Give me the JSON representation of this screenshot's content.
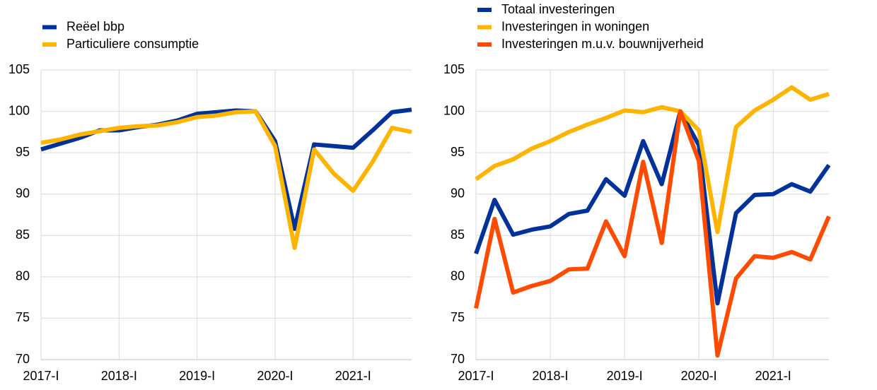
{
  "chart_data": [
    {
      "type": "line",
      "categories": [
        "2017-I",
        null,
        null,
        null,
        "2018-I",
        null,
        null,
        null,
        "2019-I",
        null,
        null,
        null,
        "2020-I",
        null,
        null,
        null,
        "2021-I",
        null,
        null,
        null
      ],
      "series": [
        {
          "name": "Reëel bbp",
          "color": "#003299",
          "values": [
            95.4,
            96.1,
            96.8,
            97.7,
            97.7,
            98.1,
            98.4,
            98.9,
            99.7,
            99.9,
            100.1,
            100.0,
            96.4,
            85.8,
            96.0,
            95.8,
            95.6,
            97.7,
            99.9,
            100.2
          ]
        },
        {
          "name": "Particuliere consumptie",
          "color": "#ffb400",
          "values": [
            96.2,
            96.6,
            97.2,
            97.6,
            98.0,
            98.2,
            98.3,
            98.7,
            99.3,
            99.5,
            99.9,
            100.0,
            95.8,
            83.5,
            95.4,
            92.5,
            90.4,
            93.9,
            98.0,
            97.5
          ]
        }
      ],
      "ylim": [
        70,
        105
      ],
      "yticks": [
        70,
        75,
        80,
        85,
        90,
        95,
        100,
        105
      ],
      "grid": true,
      "legend": "top-left"
    },
    {
      "type": "line",
      "categories": [
        "2017-I",
        null,
        null,
        null,
        "2018-I",
        null,
        null,
        null,
        "2019-I",
        null,
        null,
        null,
        "2020-I",
        null,
        null,
        null,
        "2021-I",
        null,
        null,
        null
      ],
      "series": [
        {
          "name": "Totaal investeringen",
          "color": "#003299",
          "values": [
            82.8,
            89.3,
            85.1,
            85.7,
            86.1,
            87.6,
            88.0,
            91.8,
            89.8,
            96.4,
            91.2,
            100.0,
            95.9,
            76.8,
            87.7,
            89.9,
            90.0,
            91.2,
            90.3,
            93.5
          ]
        },
        {
          "name": "Investeringen in woningen",
          "color": "#ffb400",
          "values": [
            91.8,
            93.4,
            94.2,
            95.5,
            96.4,
            97.5,
            98.4,
            99.2,
            100.1,
            99.9,
            100.5,
            100.0,
            97.7,
            85.4,
            98.1,
            100.1,
            101.4,
            102.9,
            101.4,
            102.1
          ]
        },
        {
          "name": "Investeringen m.u.v. bouwnijverheid",
          "color": "#ff4b00",
          "values": [
            76.2,
            87.0,
            78.1,
            78.9,
            79.5,
            80.9,
            81.0,
            86.7,
            82.5,
            93.9,
            84.1,
            100.0,
            94.0,
            70.5,
            79.8,
            82.5,
            82.3,
            83.0,
            82.1,
            87.3
          ]
        }
      ],
      "ylim": [
        70,
        105
      ],
      "yticks": [
        70,
        75,
        80,
        85,
        90,
        95,
        100,
        105
      ],
      "grid": true,
      "legend": "top-left"
    }
  ]
}
